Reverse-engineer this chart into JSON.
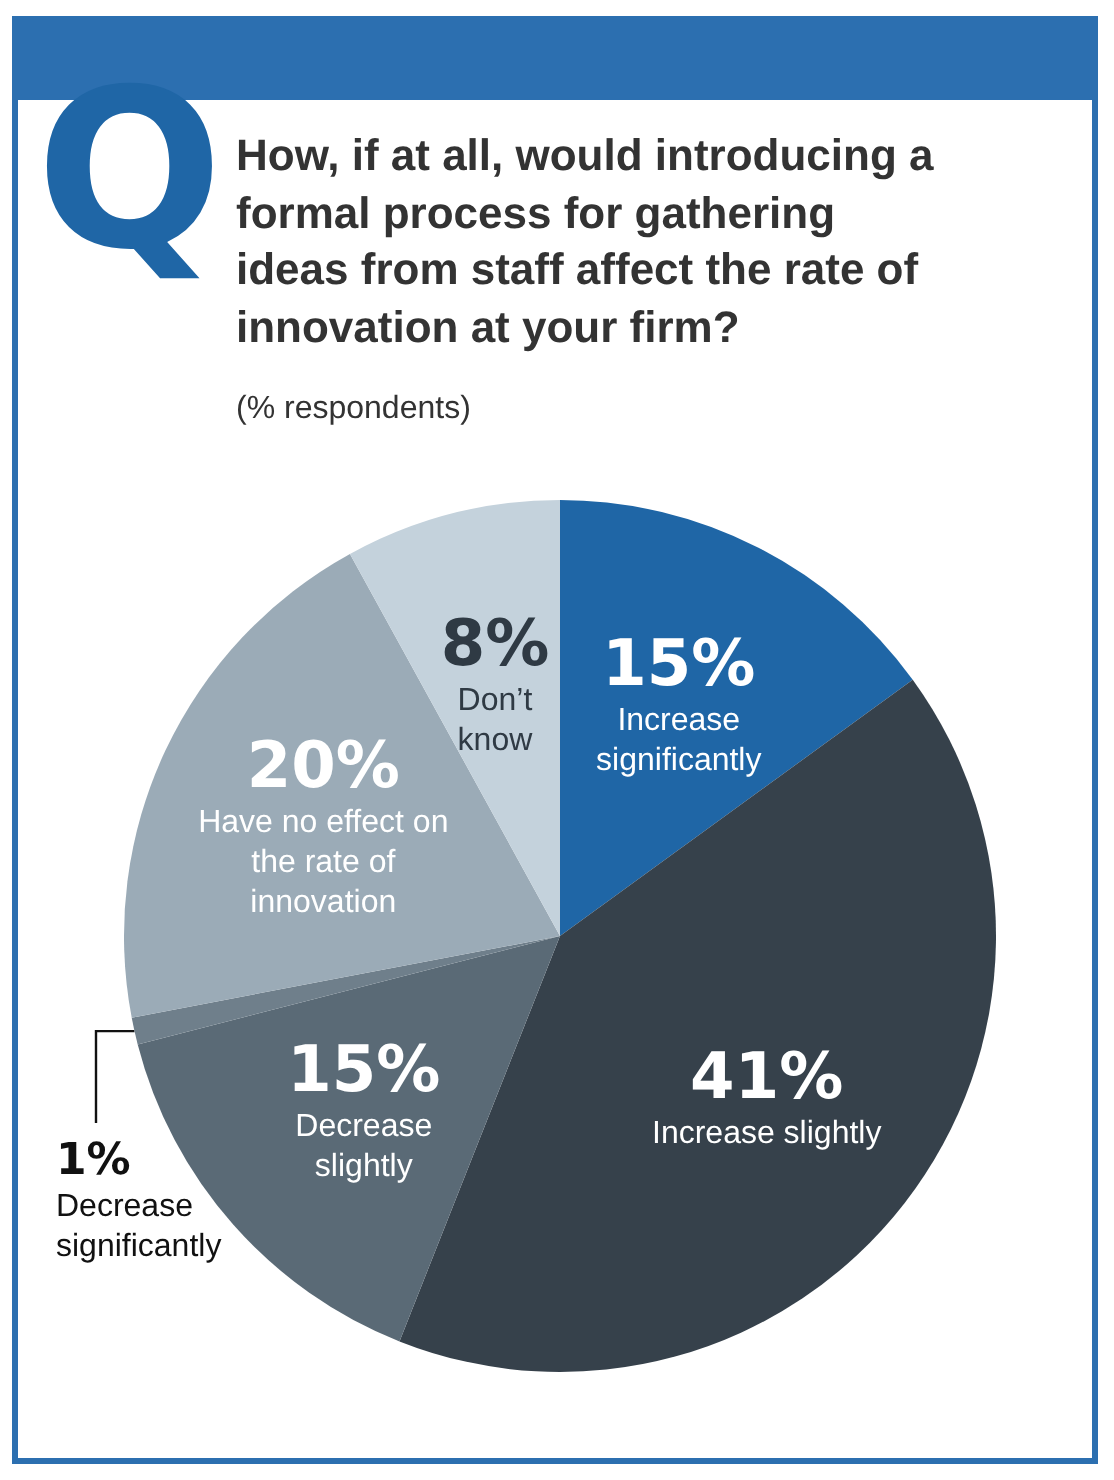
{
  "chart_data": {
    "type": "pie",
    "title": "How, if at all, would introducing a formal process for gathering ideas from staff affect the rate of innovation at your firm?",
    "subtitle": "(% respondents)",
    "annotations": [
      "Q"
    ],
    "categories": [
      "Increase significantly",
      "Increase slightly",
      "Decrease slightly",
      "Decrease significantly",
      "Have no effect on the rate of innovation",
      "Don’t know"
    ],
    "values": [
      15,
      41,
      15,
      1,
      20,
      8
    ],
    "value_labels": [
      "15%",
      "41%",
      "15%",
      "1%",
      "20%",
      "8%"
    ],
    "colors": [
      "#1f66a6",
      "#36414b",
      "#5a6a76",
      "#6f7f8b",
      "#9babb7",
      "#c4d2dc"
    ],
    "legend": false
  }
}
